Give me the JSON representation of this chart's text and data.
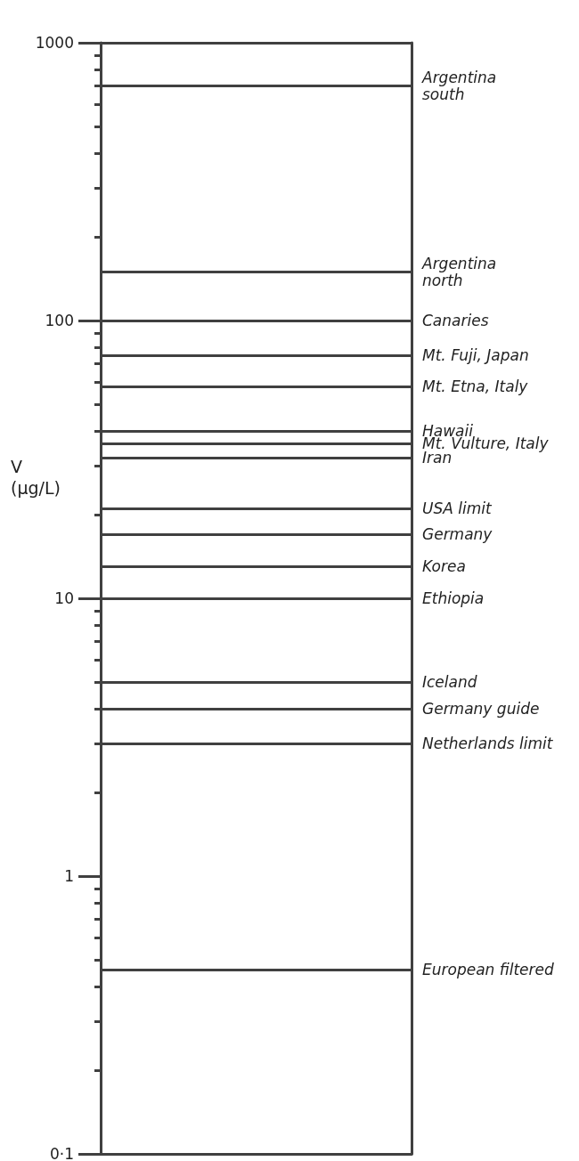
{
  "chart_data": {
    "type": "line",
    "categories": [
      null
    ],
    "ylabel": "V\n(µg/L)",
    "log": true,
    "grid": false,
    "ylim": [
      0.1,
      1000
    ],
    "yticks": [
      {
        "value": 0.1,
        "label": "0·1"
      },
      {
        "value": 0.2,
        "label": null
      },
      {
        "value": 0.3,
        "label": null
      },
      {
        "value": 0.4,
        "label": null
      },
      {
        "value": 0.5,
        "label": null
      },
      {
        "value": 0.6,
        "label": null
      },
      {
        "value": 0.7,
        "label": null
      },
      {
        "value": 0.8,
        "label": null
      },
      {
        "value": 0.9,
        "label": null
      },
      1,
      {
        "value": 2,
        "label": null
      },
      {
        "value": 3,
        "label": null
      },
      {
        "value": 4,
        "label": null
      },
      {
        "value": 5,
        "label": null
      },
      {
        "value": 6,
        "label": null
      },
      {
        "value": 7,
        "label": null
      },
      {
        "value": 8,
        "label": null
      },
      {
        "value": 9,
        "label": null
      },
      10,
      {
        "value": 20,
        "label": null
      },
      {
        "value": 30,
        "label": null
      },
      {
        "value": 40,
        "label": null
      },
      {
        "value": 50,
        "label": null
      },
      {
        "value": 60,
        "label": null
      },
      {
        "value": 70,
        "label": null
      },
      {
        "value": 80,
        "label": null
      },
      {
        "value": 90,
        "label": null
      },
      100,
      {
        "value": 200,
        "label": null
      },
      {
        "value": 300,
        "label": null
      },
      {
        "value": 400,
        "label": null
      },
      {
        "value": 500,
        "label": null
      },
      {
        "value": 600,
        "label": null
      },
      {
        "value": 700,
        "label": null
      },
      {
        "value": 800,
        "label": null
      },
      {
        "value": 900,
        "label": null
      },
      1000
    ],
    "ref_lines": [
      {
        "axis": "y",
        "value": 700,
        "label": "Argentina\nsouth",
        "color": "#404040"
      },
      {
        "axis": "y",
        "value": 150,
        "label": "Argentina\nnorth",
        "color": "#404040"
      },
      {
        "axis": "y",
        "value": 100,
        "label": "Canaries",
        "color": "#404040"
      },
      {
        "axis": "y",
        "value": 75,
        "label": "Mt. Fuji, Japan",
        "color": "#404040"
      },
      {
        "axis": "y",
        "value": 58,
        "label": "Mt. Etna, Italy",
        "color": "#404040"
      },
      {
        "axis": "y",
        "value": 40,
        "label": "Hawaii",
        "color": "#404040"
      },
      {
        "axis": "y",
        "value": 36,
        "label": "Mt. Vulture, Italy",
        "color": "#404040"
      },
      {
        "axis": "y",
        "value": 32,
        "label": "Iran",
        "color": "#404040"
      },
      {
        "axis": "y",
        "value": 21,
        "label": "USA limit",
        "color": "#404040"
      },
      {
        "axis": "y",
        "value": 17,
        "label": "Germany",
        "color": "#404040"
      },
      {
        "axis": "y",
        "value": 13,
        "label": "Korea",
        "color": "#404040"
      },
      {
        "axis": "y",
        "value": 10,
        "label": "Ethiopia",
        "color": "#404040"
      },
      {
        "axis": "y",
        "value": 5,
        "label": "Iceland",
        "color": "#404040"
      },
      {
        "axis": "y",
        "value": 4,
        "label": "Germany guide",
        "color": "#404040"
      },
      {
        "axis": "y",
        "value": 3,
        "label": "Netherlands limit",
        "color": "#404040"
      },
      {
        "axis": "y",
        "value": 0.46,
        "label": "European filtered",
        "color": "#404040"
      }
    ]
  }
}
